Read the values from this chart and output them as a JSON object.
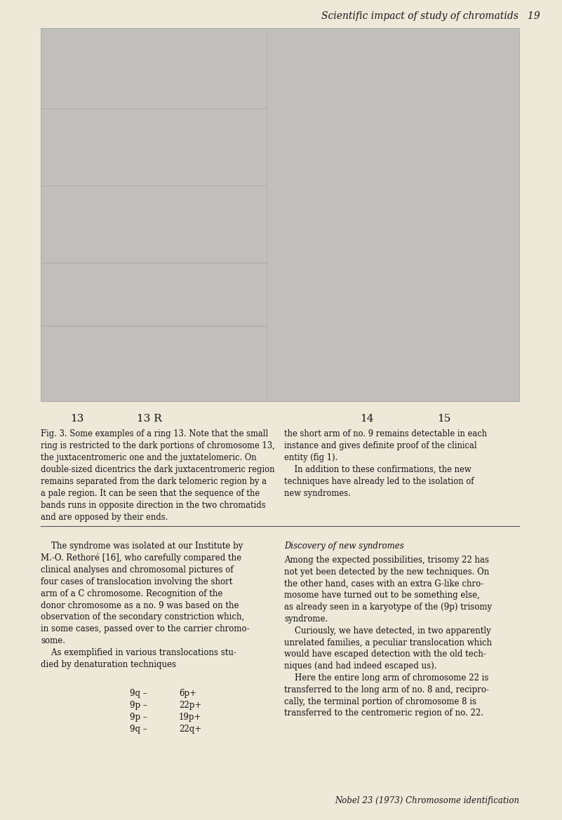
{
  "page_bg": "#ede8d8",
  "header_text": "Scientific impact of study of chromatids   19",
  "header_fontsize": 10,
  "image_bg": "#c0bfbc",
  "figure_caption_left": "Fig. 3. Some examples of a ring 13. Note that the small\nring is restricted to the dark portions of chromosome 13,\nthe juxtacentromeric one and the juxtatelomeric. On\ndouble-sized dicentrics the dark juxtacentromeric region\nremains separated from the dark telomeric region by a\na pale region. It can be seen that the sequence of the\nbands runs in opposite direction in the two chromatids\nand are opposed by their ends.",
  "figure_caption_right": "the short arm of no. 9 remains detectable in each\ninstance and gives definite proof of the clinical\nentity (fig 1).\n    In addition to these confirmations, the new\ntechniques have already led to the isolation of\nnew syndromes.",
  "left_col_text": "    The syndrome was isolated at our Institute by\nM.-O. Rethoré [16], who carefully compared the\nclinical analyses and chromosomal pictures of\nfour cases of translocation involving the short\narm of a C chromosome. Recognition of the\ndonor chromosome as a no. 9 was based on the\nobservation of the secondary constriction which,\nin some cases, passed over to the carrier chromo-\nsome.\n    As exemplified in various translocations stu-\ndied by denaturation techniques",
  "right_col_heading": "Discovery of new syndromes",
  "right_col_text": "Among the expected possibilities, trisomy 22 has\nnot yet been detected by the new techniques. On\nthe other hand, cases with an extra G-like chro-\nmosome have turned out to be something else,\nas already seen in a karyotype of the (9p) trisomy\nsyndrome.\n    Curiously, we have detected, in two apparently\nunrelated families, a peculiar translocation which\nwould have escaped detection with the old tech-\nniques (and had indeed escaped us).\n    Here the entire long arm of chromosome 22 is\ntransferred to the long arm of no. 8 and, recipro-\ncally, the terminal portion of chromosome 8 is\ntransferred to the centromeric region of no. 22.",
  "translocation_lines": [
    {
      "left": "9q –",
      "right": "6p+"
    },
    {
      "left": "9p –",
      "right": "22p+"
    },
    {
      "left": "9p –",
      "right": "19p+"
    },
    {
      "left": "9q –",
      "right": "22q+"
    }
  ],
  "footer_text": "Nobel 23 (1973) Chromosome identification",
  "body_fontsize": 8.5,
  "caption_fontsize": 8.3,
  "label_fontsize": 11,
  "img_label_13": "13",
  "img_label_13r": "13 R",
  "img_label_14": "14",
  "img_label_15": "15"
}
